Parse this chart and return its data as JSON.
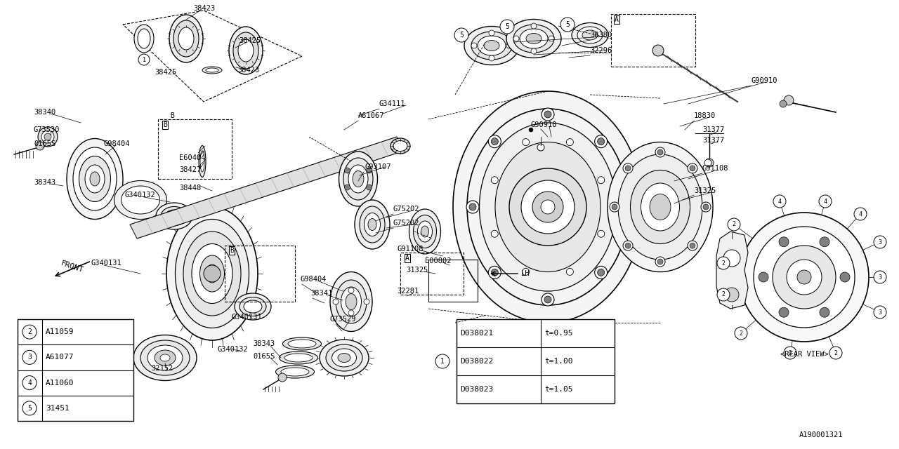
{
  "bg_color": "#ffffff",
  "fig_width": 12.8,
  "fig_height": 6.4,
  "ref_id": "A190001321",
  "legend_items": [
    {
      "symbol": "2",
      "code": "A11059"
    },
    {
      "symbol": "3",
      "code": "A61077"
    },
    {
      "symbol": "4",
      "code": "A11060"
    },
    {
      "symbol": "5",
      "code": "31451"
    }
  ],
  "thickness_table": [
    {
      "code": "D038021",
      "thickness": "t=0.95"
    },
    {
      "code": "D038022",
      "thickness": "t=1.00"
    },
    {
      "code": "D038023",
      "thickness": "t=1.05"
    }
  ]
}
